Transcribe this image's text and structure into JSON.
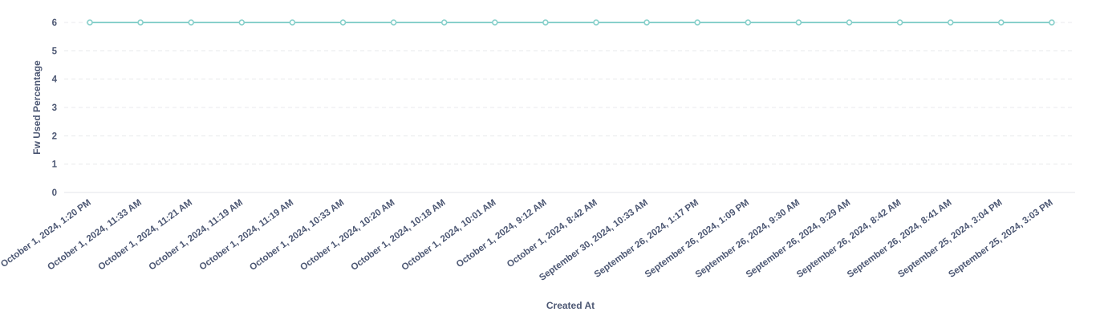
{
  "chart_data": {
    "type": "line",
    "xlabel": "Created At",
    "ylabel": "Fw Used Percentage",
    "ylim": [
      0,
      6
    ],
    "yticks": [
      0,
      1,
      2,
      3,
      4,
      5,
      6
    ],
    "grid": true,
    "categories": [
      "October 1, 2024, 1:20 PM",
      "October 1, 2024, 11:33 AM",
      "October 1, 2024, 11:21 AM",
      "October 1, 2024, 11:19 AM",
      "October 1, 2024, 11:19 AM",
      "October 1, 2024, 10:33 AM",
      "October 1, 2024, 10:20 AM",
      "October 1, 2024, 10:18 AM",
      "October 1, 2024, 10:01 AM",
      "October 1, 2024, 9:12 AM",
      "October 1, 2024, 8:42 AM",
      "September 30, 2024, 10:33 AM",
      "September 26, 2024, 1:17 PM",
      "September 26, 2024, 1:09 PM",
      "September 26, 2024, 9:30 AM",
      "September 26, 2024, 9:29 AM",
      "September 26, 2024, 8:42 AM",
      "September 26, 2024, 8:41 AM",
      "September 25, 2024, 3:04 PM",
      "September 25, 2024, 3:03 PM"
    ],
    "series": [
      {
        "values": [
          6,
          6,
          6,
          6,
          6,
          6,
          6,
          6,
          6,
          6,
          6,
          6,
          6,
          6,
          6,
          6,
          6,
          6,
          6,
          6
        ],
        "color": "#88d0cb"
      }
    ]
  }
}
